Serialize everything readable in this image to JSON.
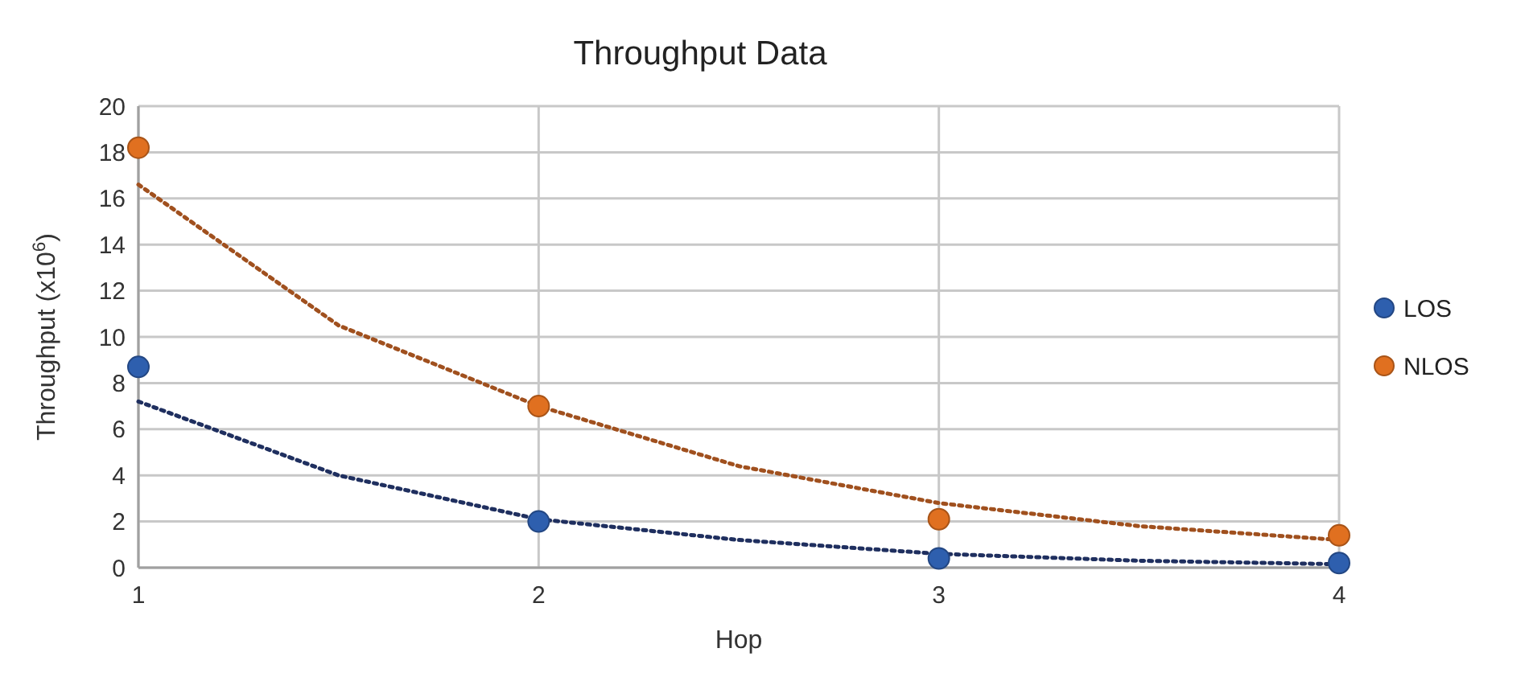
{
  "chart_data": {
    "type": "scatter",
    "title": "Throughput Data",
    "xlabel": "Hop",
    "ylabel": "Throughput (x10$^{6}$)",
    "x": [
      1,
      2,
      3,
      4
    ],
    "xlim": [
      1,
      4
    ],
    "xticks": [
      1,
      2,
      3,
      4
    ],
    "ylim": [
      0,
      20
    ],
    "yticks": [
      0,
      2,
      4,
      6,
      8,
      10,
      12,
      14,
      16,
      18,
      20
    ],
    "grid": true,
    "legend": "right",
    "marker": "circle",
    "series": [
      {
        "type": "line",
        "x": [
          1,
          1.5,
          2,
          2.5,
          3,
          3.5,
          4
        ],
        "values": [
          7.2,
          4.0,
          2.1,
          1.2,
          0.6,
          0.3,
          0.15
        ],
        "color": "#1f2f5f",
        "line_style": "dotted",
        "marker": "none"
      },
      {
        "type": "line",
        "x": [
          1,
          1.5,
          2,
          2.5,
          3,
          3.5,
          4
        ],
        "values": [
          16.6,
          10.5,
          7.0,
          4.4,
          2.8,
          1.8,
          1.2
        ],
        "color": "#a0501e",
        "line_style": "dotted",
        "marker": "none"
      },
      {
        "name": "LOS",
        "color": "#2e5fae",
        "values": [
          8.7,
          2.0,
          0.4,
          0.2
        ]
      },
      {
        "name": "NLOS",
        "color": "#e07020",
        "values": [
          18.2,
          7.0,
          2.1,
          1.4
        ]
      }
    ]
  }
}
